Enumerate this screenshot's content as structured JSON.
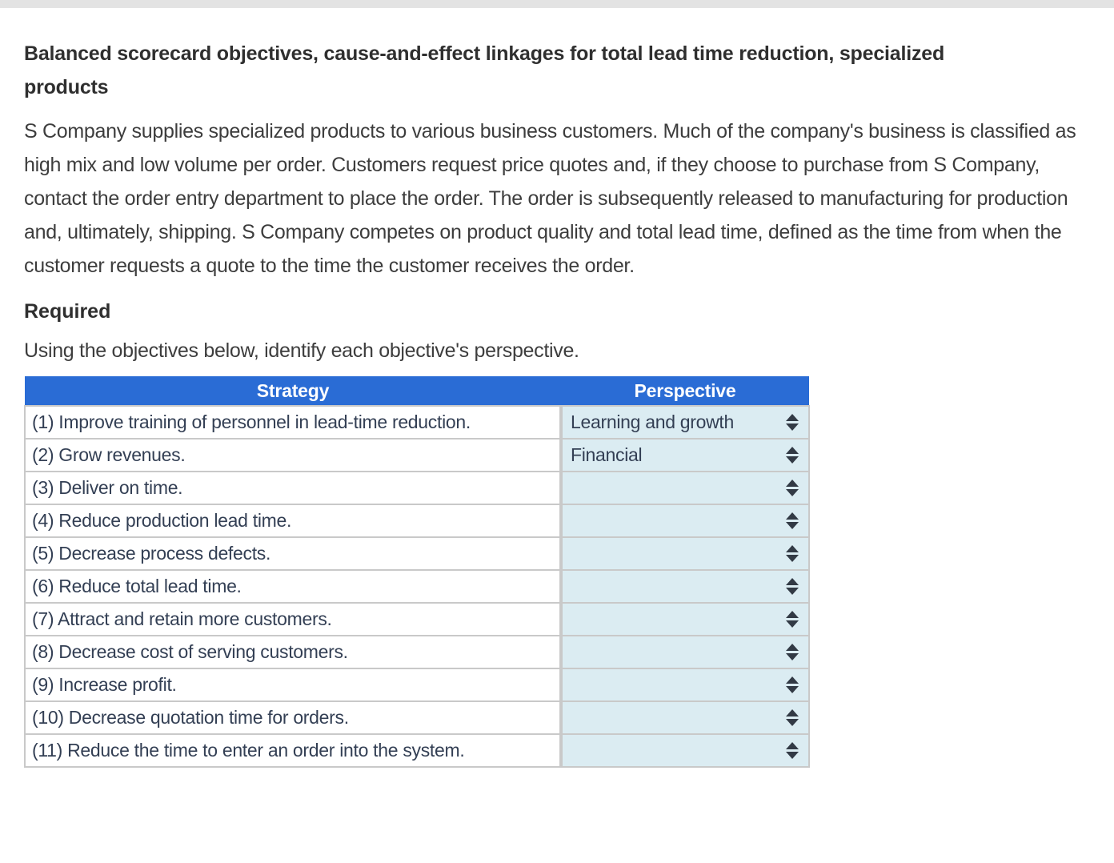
{
  "page": {
    "title": "Balanced scorecard objectives, cause-and-effect linkages for total lead time reduction, specialized products",
    "intro": "S Company supplies specialized products to various business customers. Much of the company's business is classified as high mix and low volume per order. Customers request price quotes and, if they choose to purchase from S Company, contact the order entry department to place the order. The order is subsequently released to manufacturing for production and, ultimately, shipping. S Company competes on product quality and total lead time, defined as the time from when the customer requests a quote to the time the customer receives the order.",
    "required_heading": "Required",
    "instruction": "Using the objectives below, identify each objective's perspective."
  },
  "table": {
    "headers": [
      "Strategy",
      "Perspective"
    ],
    "rows": [
      {
        "strategy": "(1) Improve training of personnel in lead-time reduction.",
        "perspective": "Learning and growth"
      },
      {
        "strategy": "(2) Grow revenues.",
        "perspective": "Financial"
      },
      {
        "strategy": "(3) Deliver on time.",
        "perspective": ""
      },
      {
        "strategy": "(4) Reduce production lead time.",
        "perspective": ""
      },
      {
        "strategy": "(5) Decrease process defects.",
        "perspective": ""
      },
      {
        "strategy": "(6) Reduce total lead time.",
        "perspective": ""
      },
      {
        "strategy": "(7) Attract and retain more customers.",
        "perspective": ""
      },
      {
        "strategy": "(8) Decrease cost of serving customers.",
        "perspective": ""
      },
      {
        "strategy": "(9) Increase profit.",
        "perspective": ""
      },
      {
        "strategy": "(10) Decrease quotation time for orders.",
        "perspective": ""
      },
      {
        "strategy": "(11) Reduce the time to enter an order into the system.",
        "perspective": ""
      }
    ]
  },
  "icons": {
    "perspective_selector": "up-down-arrows-icon"
  },
  "colors": {
    "top_bar": "#e3e3e3",
    "header_background": "#2a6cd5",
    "header_text": "#ffffff",
    "perspective_cell_background": "#dbecf2",
    "table_border": "#c9c9c9",
    "table_text": "#333f54",
    "body_text": "#3d3d3d",
    "arrow_icon": "#323a45"
  }
}
